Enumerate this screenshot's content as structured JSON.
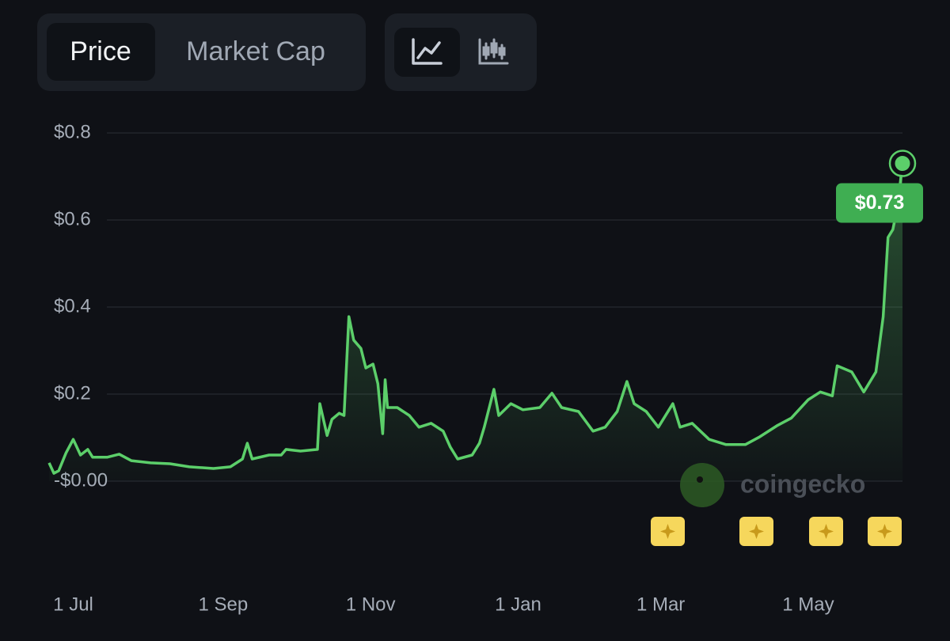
{
  "ui": {
    "tabs": [
      "Price",
      "Market Cap"
    ],
    "watermark": "coingecko"
  },
  "chart_data": {
    "type": "line",
    "x": [
      -10,
      -8,
      -6,
      -3,
      0,
      3,
      6,
      8,
      14,
      19,
      24,
      32,
      40,
      48,
      58,
      65,
      70,
      72,
      74,
      81,
      86,
      88,
      94,
      101,
      102,
      105,
      107,
      110,
      112,
      114,
      116,
      119,
      121,
      124,
      126,
      128,
      129,
      130,
      134,
      139,
      143,
      148,
      153,
      156,
      159,
      165,
      168,
      170,
      174,
      176,
      181,
      186,
      193,
      198,
      202,
      209,
      215,
      220,
      225,
      229,
      232,
      237,
      242,
      248,
      251,
      256,
      263,
      270,
      278,
      284,
      291,
      297,
      304,
      309,
      314,
      316,
      322,
      327,
      332,
      335,
      337,
      339,
      341,
      343
    ],
    "values": [
      0.042,
      0.018,
      0.024,
      0.065,
      0.096,
      0.06,
      0.073,
      0.055,
      0.055,
      0.062,
      0.047,
      0.042,
      0.04,
      0.033,
      0.029,
      0.033,
      0.051,
      0.087,
      0.051,
      0.06,
      0.06,
      0.073,
      0.069,
      0.073,
      0.178,
      0.105,
      0.142,
      0.156,
      0.151,
      0.378,
      0.324,
      0.305,
      0.26,
      0.269,
      0.224,
      0.109,
      0.233,
      0.169,
      0.169,
      0.151,
      0.124,
      0.133,
      0.115,
      0.078,
      0.051,
      0.06,
      0.087,
      0.124,
      0.211,
      0.151,
      0.178,
      0.164,
      0.169,
      0.202,
      0.169,
      0.16,
      0.115,
      0.124,
      0.16,
      0.229,
      0.178,
      0.16,
      0.124,
      0.178,
      0.124,
      0.133,
      0.096,
      0.084,
      0.084,
      0.102,
      0.127,
      0.145,
      0.187,
      0.205,
      0.196,
      0.265,
      0.251,
      0.205,
      0.251,
      0.378,
      0.56,
      0.578,
      0.633,
      0.73
    ],
    "value_labels": [
      null,
      null,
      null,
      null,
      null,
      null,
      null,
      null,
      null,
      null,
      null,
      null,
      null,
      null,
      null,
      null,
      null,
      null,
      null,
      null,
      null,
      null,
      null,
      null,
      null,
      null,
      null,
      null,
      null,
      null,
      null,
      null,
      null,
      null,
      null,
      null,
      null,
      null,
      null,
      null,
      null,
      null,
      null,
      null,
      null,
      null,
      null,
      null,
      null,
      null,
      null,
      null,
      null,
      null,
      null,
      null,
      null,
      null,
      null,
      null,
      null,
      null,
      null,
      null,
      null,
      null,
      null,
      null,
      null,
      null,
      null,
      null,
      null,
      null,
      null,
      null,
      null,
      null,
      null,
      null,
      null,
      null,
      null,
      "$0.73"
    ],
    "color": "#5ccf6a",
    "xlim": [
      -10,
      343
    ],
    "xticks": [
      {
        "value": 0,
        "label": "1 Jul"
      },
      {
        "value": 62,
        "label": "1 Sep"
      },
      {
        "value": 123,
        "label": "1 Nov"
      },
      {
        "value": 184,
        "label": "1 Jan"
      },
      {
        "value": 243,
        "label": "1 Mar"
      },
      {
        "value": 304,
        "label": "1 May"
      }
    ],
    "ylim": [
      0,
      0.8
    ],
    "yticks": [
      {
        "value": 0,
        "label": "-$0.00"
      },
      {
        "value": 0.2,
        "label": "$0.2"
      },
      {
        "value": 0.4,
        "label": "$0.4"
      },
      {
        "value": 0.6,
        "label": "$0.6"
      },
      {
        "value": 0.8,
        "label": "$0.8"
      }
    ],
    "grid": true
  }
}
